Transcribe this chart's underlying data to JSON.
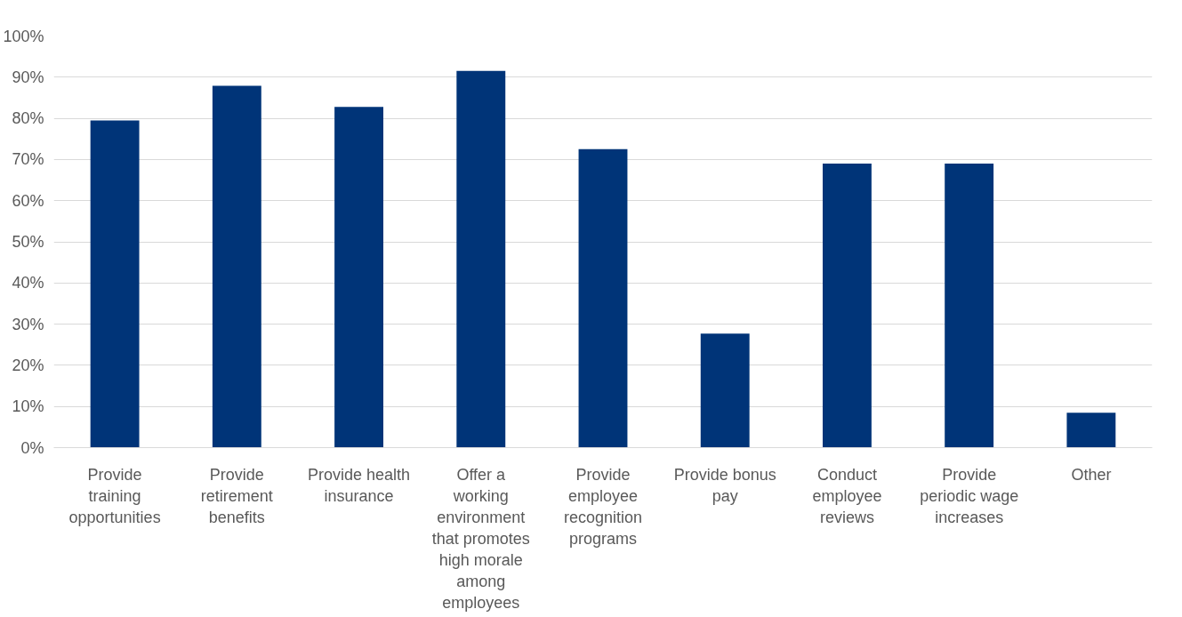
{
  "chart_data": {
    "type": "bar",
    "categories": [
      "Provide training opportunities",
      "Provide retirement benefits",
      "Provide health insurance",
      "Offer a working environment that promotes high morale among employees",
      "Provide employee recognition programs",
      "Provide bonus pay",
      "Conduct employee reviews",
      "Provide periodic wage increases",
      "Other"
    ],
    "values": [
      79.5,
      87.9,
      82.8,
      91.5,
      72.5,
      27.7,
      69.0,
      69.0,
      8.5
    ],
    "color": "#003478",
    "ylim": [
      0,
      100
    ],
    "yticks": [
      {
        "value": 0,
        "label": "0%"
      },
      {
        "value": 10,
        "label": "10%"
      },
      {
        "value": 20,
        "label": "20%"
      },
      {
        "value": 30,
        "label": "30%"
      },
      {
        "value": 40,
        "label": "40%"
      },
      {
        "value": 50,
        "label": "50%"
      },
      {
        "value": 60,
        "label": "60%"
      },
      {
        "value": 70,
        "label": "70%"
      },
      {
        "value": 80,
        "label": "80%"
      },
      {
        "value": 90,
        "label": "90%"
      },
      {
        "value": 100,
        "label": "100%"
      }
    ],
    "grid": "y"
  }
}
